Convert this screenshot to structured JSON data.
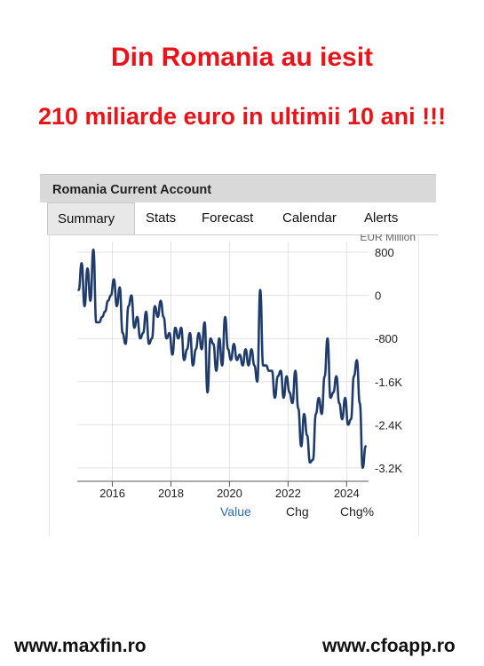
{
  "headline": {
    "line1": "Din Romania au iesit",
    "line2": "210 miliarde euro in ultimii 10 ani !!!",
    "color": "#e8141a"
  },
  "panel": {
    "title": "Romania Current Account"
  },
  "tabs": [
    {
      "label": "Summary",
      "active": true
    },
    {
      "label": "Stats",
      "active": false
    },
    {
      "label": "Forecast",
      "active": false
    },
    {
      "label": "Calendar",
      "active": false
    },
    {
      "label": "Alerts",
      "active": false
    }
  ],
  "view_options": [
    {
      "label": "Value",
      "active": true,
      "color": "#2a6db0"
    },
    {
      "label": "Chg",
      "active": false
    },
    {
      "label": "Chg%",
      "active": false
    }
  ],
  "footer": {
    "left": "www.maxfin.ro",
    "right": "www.cfoapp.ro"
  },
  "chart_data": {
    "type": "line",
    "unit_label": "EUR Million",
    "line_color": "#1f3c6b",
    "grid": true,
    "xlim": [
      2014.8,
      2024.75
    ],
    "ylim": [
      -3450,
      1000
    ],
    "x_ticks": [
      2016,
      2018,
      2020,
      2022,
      2024
    ],
    "x_tick_labels": [
      "2016",
      "2018",
      "2020",
      "2022",
      "2024"
    ],
    "y_ticks": [
      800,
      0,
      -800,
      -1600,
      -2400,
      -3200
    ],
    "y_tick_labels": [
      "800",
      "0",
      "-800",
      "-1.6K",
      "-2.4K",
      "-3.2K"
    ],
    "series": [
      {
        "x": [
          2014.85,
          2014.95,
          2015.05,
          2015.15,
          2015.25,
          2015.35,
          2015.45,
          2015.55,
          2015.65,
          2015.75,
          2015.85,
          2015.95,
          2016.05,
          2016.15,
          2016.25,
          2016.35,
          2016.45,
          2016.55,
          2016.65,
          2016.75,
          2016.85,
          2016.95,
          2017.05,
          2017.15,
          2017.25,
          2017.35,
          2017.45,
          2017.55,
          2017.65,
          2017.75,
          2017.85,
          2017.95,
          2018.05,
          2018.15,
          2018.25,
          2018.35,
          2018.45,
          2018.55,
          2018.65,
          2018.75,
          2018.85,
          2018.95,
          2019.05,
          2019.15,
          2019.25,
          2019.35,
          2019.45,
          2019.55,
          2019.65,
          2019.75,
          2019.85,
          2019.95,
          2020.05,
          2020.15,
          2020.25,
          2020.35,
          2020.45,
          2020.55,
          2020.65,
          2020.75,
          2020.85,
          2020.95,
          2021.05,
          2021.15,
          2021.25,
          2021.35,
          2021.45,
          2021.55,
          2021.65,
          2021.75,
          2021.85,
          2021.95,
          2022.05,
          2022.15,
          2022.25,
          2022.35,
          2022.45,
          2022.55,
          2022.65,
          2022.75,
          2022.85,
          2022.95,
          2023.05,
          2023.15,
          2023.25,
          2023.35,
          2023.45,
          2023.55,
          2023.65,
          2023.75,
          2023.85,
          2023.95,
          2024.05,
          2024.15,
          2024.25,
          2024.35,
          2024.45,
          2024.55,
          2024.65
        ],
        "y": [
          100,
          600,
          -200,
          500,
          -100,
          850,
          -500,
          -500,
          -400,
          -300,
          -100,
          0,
          300,
          -200,
          150,
          -700,
          -900,
          -200,
          0,
          -600,
          -400,
          -800,
          -700,
          -300,
          -900,
          -800,
          -200,
          -400,
          -100,
          -400,
          -800,
          -700,
          -1100,
          -600,
          -800,
          -600,
          -1200,
          -1000,
          -700,
          -1300,
          -1000,
          -700,
          -1000,
          -500,
          -1800,
          -800,
          -900,
          -1400,
          -800,
          -1300,
          -400,
          -1000,
          -1200,
          -900,
          -1200,
          -1100,
          -1300,
          -1000,
          -1300,
          -1000,
          -1300,
          -1600,
          100,
          -1300,
          -1300,
          -1400,
          -1400,
          -1900,
          -1500,
          -1400,
          -1900,
          -1500,
          -1800,
          -2000,
          -1400,
          -2100,
          -2800,
          -2200,
          -2600,
          -3100,
          -3050,
          -2200,
          -1900,
          -2200,
          -1500,
          -800,
          -1900,
          -1800,
          -1500,
          -2000,
          -2300,
          -1900,
          -2400,
          -2300,
          -1500,
          -1200,
          -2000,
          -3200,
          -2800
        ]
      }
    ]
  }
}
